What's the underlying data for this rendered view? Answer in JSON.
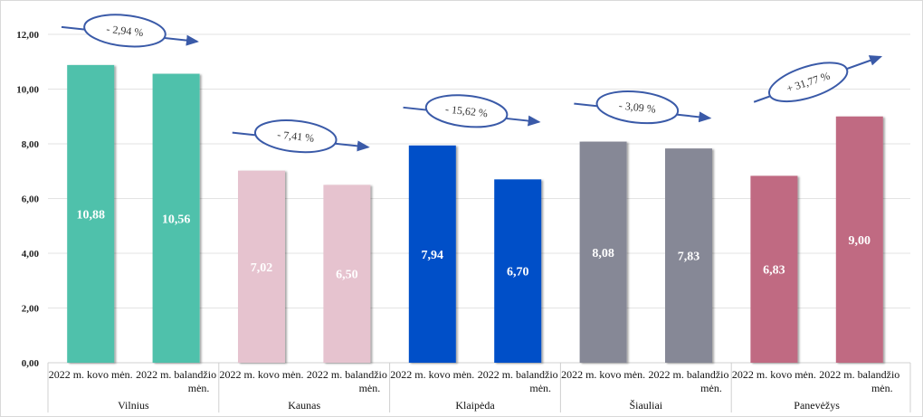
{
  "chart_data": {
    "type": "bar",
    "ylim": [
      0,
      12
    ],
    "yticks": [
      "0,00",
      "2,00",
      "4,00",
      "6,00",
      "8,00",
      "10,00",
      "12,00"
    ],
    "grid": true,
    "groups": [
      {
        "name": "Vilnius",
        "color": "#4fc1ab",
        "label_color": "#ffffff",
        "bars": [
          {
            "category": "2022 m. kovo mėn.",
            "value": 10.88,
            "label": "10,88"
          },
          {
            "category": "2022 m. balandžio mėn.",
            "value": 10.56,
            "label": "10,56"
          }
        ],
        "change": "- 2,94 %",
        "direction": "down"
      },
      {
        "name": "Kaunas",
        "color": "#e6c3cf",
        "label_color": "#ffffff",
        "bars": [
          {
            "category": "2022 m. kovo mėn.",
            "value": 7.02,
            "label": "7,02"
          },
          {
            "category": "2022 m. balandžio mėn.",
            "value": 6.5,
            "label": "6,50"
          }
        ],
        "change": "- 7,41 %",
        "direction": "down"
      },
      {
        "name": "Klaipėda",
        "color": "#0050c8",
        "label_color": "#ffffff",
        "bars": [
          {
            "category": "2022 m. kovo mėn.",
            "value": 7.94,
            "label": "7,94"
          },
          {
            "category": "2022 m. balandžio mėn.",
            "value": 6.7,
            "label": "6,70"
          }
        ],
        "change": "- 15,62 %",
        "direction": "down"
      },
      {
        "name": "Šiauliai",
        "color": "#868896",
        "label_color": "#ffffff",
        "bars": [
          {
            "category": "2022 m. kovo mėn.",
            "value": 8.08,
            "label": "8,08"
          },
          {
            "category": "2022 m. balandžio mėn.",
            "value": 7.83,
            "label": "7,83"
          }
        ],
        "change": "- 3,09 %",
        "direction": "down"
      },
      {
        "name": "Panevėžys",
        "color": "#c06a82",
        "label_color": "#ffffff",
        "bars": [
          {
            "category": "2022 m. kovo mėn.",
            "value": 6.83,
            "label": "6,83"
          },
          {
            "category": "2022 m. balandžio mėn.",
            "value": 9.0,
            "label": "9,00"
          }
        ],
        "change": "+ 31,77 %",
        "direction": "up"
      }
    ]
  }
}
